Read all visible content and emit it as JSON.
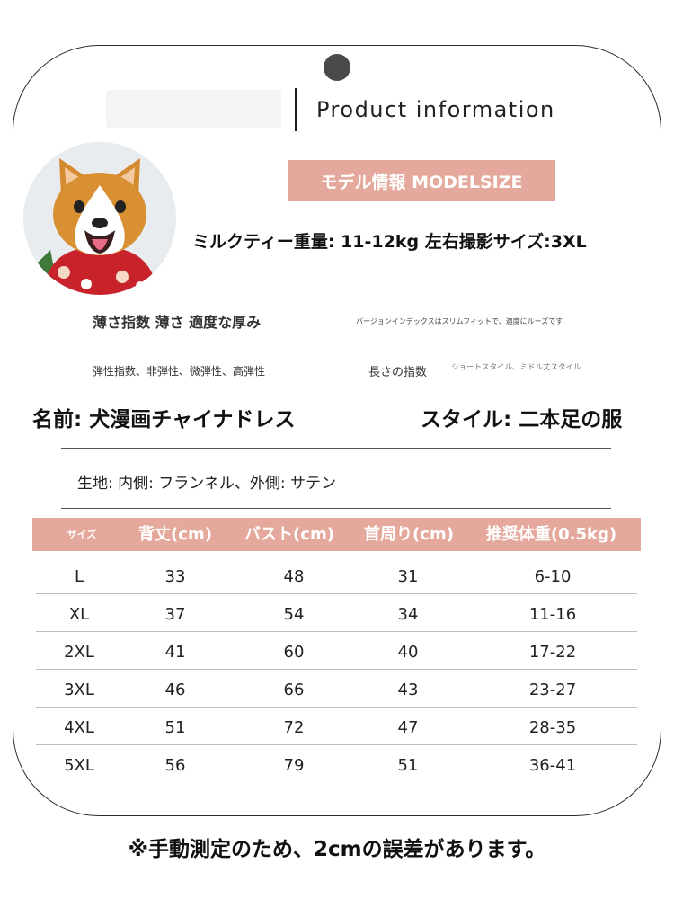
{
  "header": {
    "title": "Product information"
  },
  "model": {
    "badge": "モデル情報 MODELSIZE",
    "description": "ミルクティー重量: 11-12kg 左右撮影サイズ:3XL"
  },
  "indices": {
    "thickness": "薄さ指数 薄さ 適度な厚み",
    "version_note": "バージョンインデックスはスリムフィットで、適度にルーズです",
    "elasticity": "弾性指数、非弾性、微弾性、高弾性",
    "length_label": "長さの指数",
    "length_values": "ショートスタイル、ミドル丈スタイル"
  },
  "product": {
    "name": "名前: 犬漫画チャイナドレス",
    "style": "スタイル: 二本足の服",
    "fabric": "生地: 内側: フランネル、外側: サテン"
  },
  "size_table": {
    "headers": [
      "サイズ",
      "背丈(cm)",
      "バスト(cm)",
      "首周り(cm)",
      "推奨体重(0.5kg)"
    ],
    "rows": [
      [
        "L",
        "33",
        "48",
        "31",
        "6-10"
      ],
      [
        "XL",
        "37",
        "54",
        "34",
        "11-16"
      ],
      [
        "2XL",
        "41",
        "60",
        "40",
        "17-22"
      ],
      [
        "3XL",
        "46",
        "66",
        "43",
        "23-27"
      ],
      [
        "4XL",
        "51",
        "72",
        "47",
        "28-35"
      ],
      [
        "5XL",
        "56",
        "79",
        "51",
        "36-41"
      ]
    ]
  },
  "footer": {
    "note": "※手動測定のため、2cmの誤差があります。"
  },
  "colors": {
    "accent": "#e4a99c",
    "text": "#1a1a1a"
  },
  "image": {
    "subject": "corgi-dog-photo"
  }
}
